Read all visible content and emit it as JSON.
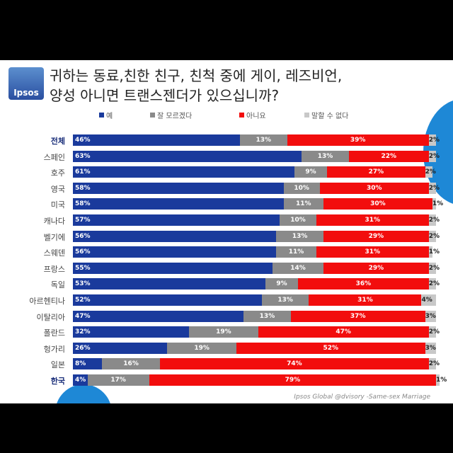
{
  "logo_text": "Ipsos",
  "chart_data": {
    "type": "bar",
    "orientation": "horizontal-stacked-100",
    "title": [
      "귀하는 동료,친한 친구, 친척 중에 게이, 레즈비언,",
      "양성 아니면 트랜스젠더가 있으십니까?"
    ],
    "legend_position": "top",
    "categories": [
      "전체",
      "스페인",
      "호주",
      "영국",
      "미국",
      "캐나다",
      "벨기에",
      "스웨덴",
      "프랑스",
      "독일",
      "아르헨티나",
      "이탈리아",
      "폴란드",
      "헝가리",
      "일본",
      "한국"
    ],
    "bold_categories": [
      "전체",
      "한국"
    ],
    "series": [
      {
        "name": "예",
        "color": "#1a3a9c",
        "values": [
          46,
          63,
          61,
          58,
          58,
          57,
          56,
          56,
          55,
          53,
          52,
          47,
          32,
          26,
          8,
          4
        ]
      },
      {
        "name": "잘 모르겠다",
        "color": "#8a8a8a",
        "values": [
          13,
          13,
          9,
          10,
          11,
          10,
          13,
          11,
          14,
          9,
          13,
          13,
          19,
          19,
          16,
          17
        ]
      },
      {
        "name": "아니요",
        "color": "#f20d0d",
        "values": [
          39,
          22,
          27,
          30,
          30,
          31,
          29,
          31,
          29,
          36,
          31,
          37,
          47,
          52,
          74,
          79
        ]
      },
      {
        "name": "말할 수 없다",
        "color": "#c8c8c8",
        "values": [
          2,
          2,
          2,
          2,
          1,
          2,
          2,
          1,
          2,
          2,
          4,
          3,
          2,
          3,
          2,
          1
        ]
      }
    ],
    "value_suffix": "%"
  },
  "source": "Ipsos Global @dvisory -Same-sex Marriage"
}
